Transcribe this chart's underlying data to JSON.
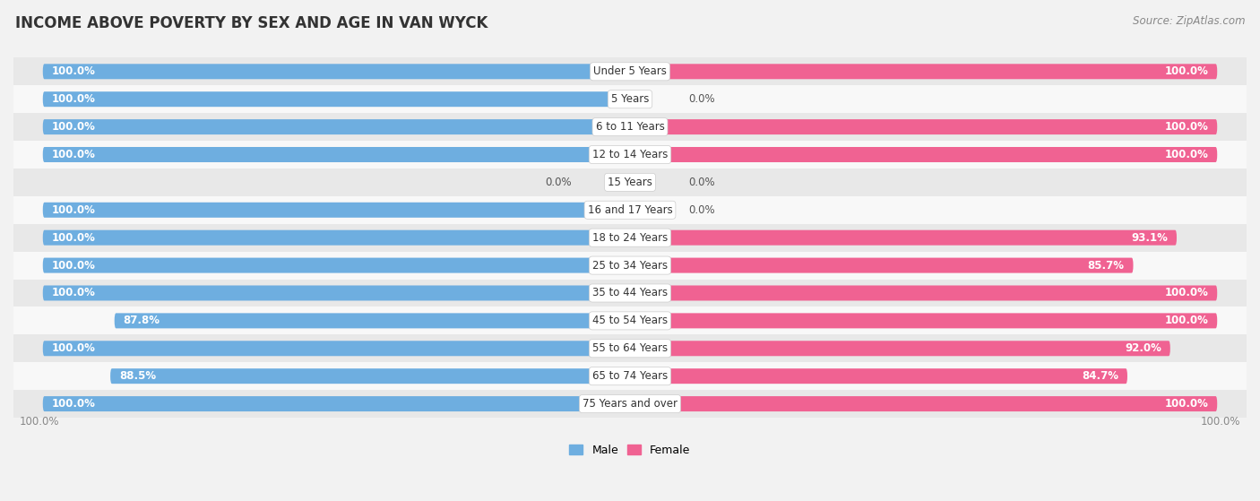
{
  "title": "INCOME ABOVE POVERTY BY SEX AND AGE IN VAN WYCK",
  "source": "Source: ZipAtlas.com",
  "categories": [
    "Under 5 Years",
    "5 Years",
    "6 to 11 Years",
    "12 to 14 Years",
    "15 Years",
    "16 and 17 Years",
    "18 to 24 Years",
    "25 to 34 Years",
    "35 to 44 Years",
    "45 to 54 Years",
    "55 to 64 Years",
    "65 to 74 Years",
    "75 Years and over"
  ],
  "male": [
    100.0,
    100.0,
    100.0,
    100.0,
    0.0,
    100.0,
    100.0,
    100.0,
    100.0,
    87.8,
    100.0,
    88.5,
    100.0
  ],
  "female": [
    100.0,
    0.0,
    100.0,
    100.0,
    0.0,
    0.0,
    93.1,
    85.7,
    100.0,
    100.0,
    92.0,
    84.7,
    100.0
  ],
  "male_color": "#6eaee0",
  "male_color_light": "#b8d5ef",
  "female_color": "#f06292",
  "female_color_light": "#f8bbd0",
  "bar_height": 0.55,
  "background_color": "#f2f2f2",
  "row_bg_colors": [
    "#e8e8e8",
    "#f8f8f8"
  ],
  "label_fontsize": 8.5,
  "cat_fontsize": 8.5,
  "title_fontsize": 12,
  "source_fontsize": 8.5,
  "legend_fontsize": 9
}
